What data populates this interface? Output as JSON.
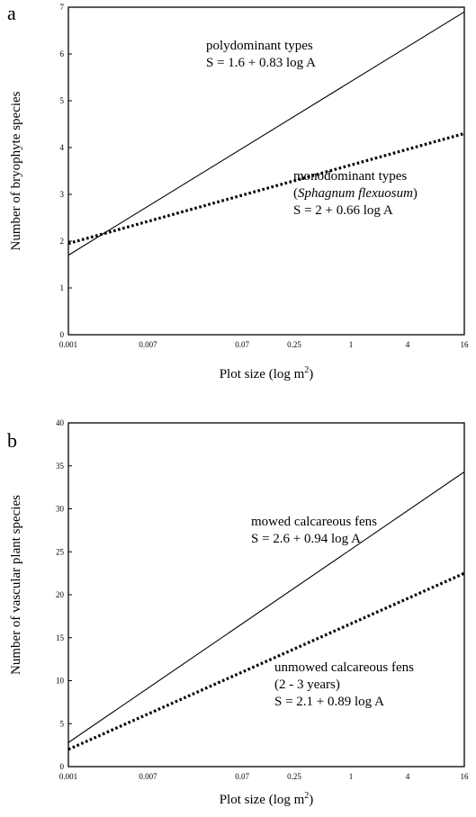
{
  "chart_data": [
    {
      "panel": "a",
      "type": "line",
      "title": "",
      "xlabel": "Plot size (log m",
      "xlabel_sup": "2",
      "xlabel_end": ")",
      "ylabel": "Number of bryophyte species",
      "x_scale": "log",
      "x_ticks": [
        {
          "value": 0.001,
          "label": "0.001"
        },
        {
          "value": 0.007,
          "label": "0.007"
        },
        {
          "value": 0.07,
          "label": "0.07"
        },
        {
          "value": 0.25,
          "label": "0.25"
        },
        {
          "value": 1,
          "label": "1"
        },
        {
          "value": 4,
          "label": "4"
        },
        {
          "value": 16,
          "label": "16"
        }
      ],
      "y_ticks": [
        {
          "value": 0,
          "label": "0"
        },
        {
          "value": 1,
          "label": "1"
        },
        {
          "value": 2,
          "label": "2"
        },
        {
          "value": 3,
          "label": "3"
        },
        {
          "value": 4,
          "label": "4"
        },
        {
          "value": 5,
          "label": "5"
        },
        {
          "value": 6,
          "label": "6"
        },
        {
          "value": 7,
          "label": "7"
        }
      ],
      "xlim": [
        0.001,
        16
      ],
      "ylim": [
        0,
        7
      ],
      "grid": false,
      "series": [
        {
          "style": "solid",
          "x": [
            0.001,
            16
          ],
          "y": [
            1.7,
            6.9
          ]
        },
        {
          "style": "dotted",
          "x": [
            0.001,
            16
          ],
          "y": [
            1.95,
            4.3
          ]
        }
      ],
      "annotations": [
        {
          "lines": [
            {
              "text": "polydominant types"
            },
            {
              "text": "S = 1.6 + 0.83 log A"
            }
          ]
        },
        {
          "lines": [
            {
              "text": "monodominant types"
            },
            {
              "prefix": "(",
              "italic": "Sphagnum flexuosum",
              "suffix": ")"
            },
            {
              "text": "S = 2 + 0.66 log A"
            }
          ]
        }
      ]
    },
    {
      "panel": "b",
      "type": "line",
      "title": "",
      "xlabel": "Plot size (log m",
      "xlabel_sup": "2",
      "xlabel_end": ")",
      "ylabel": "Number of vascular plant species",
      "x_scale": "log",
      "x_ticks": [
        {
          "value": 0.001,
          "label": "0.001"
        },
        {
          "value": 0.007,
          "label": "0.007"
        },
        {
          "value": 0.07,
          "label": "0.07"
        },
        {
          "value": 0.25,
          "label": "0.25"
        },
        {
          "value": 1,
          "label": "1"
        },
        {
          "value": 4,
          "label": "4"
        },
        {
          "value": 16,
          "label": "16"
        }
      ],
      "y_ticks": [
        {
          "value": 0,
          "label": "0"
        },
        {
          "value": 5,
          "label": "5"
        },
        {
          "value": 10,
          "label": "10"
        },
        {
          "value": 15,
          "label": "15"
        },
        {
          "value": 20,
          "label": "20"
        },
        {
          "value": 25,
          "label": "25"
        },
        {
          "value": 30,
          "label": "30"
        },
        {
          "value": 35,
          "label": "35"
        },
        {
          "value": 40,
          "label": "40"
        }
      ],
      "xlim": [
        0.001,
        16
      ],
      "ylim": [
        0,
        40
      ],
      "grid": false,
      "series": [
        {
          "style": "solid",
          "x": [
            0.001,
            16
          ],
          "y": [
            2.8,
            34.3
          ]
        },
        {
          "style": "dotted",
          "x": [
            0.001,
            16
          ],
          "y": [
            2.0,
            22.5
          ]
        }
      ],
      "annotations": [
        {
          "lines": [
            {
              "text": "mowed calcareous fens"
            },
            {
              "text": "S = 2.6 + 0.94 log A"
            }
          ]
        },
        {
          "lines": [
            {
              "text": "unmowed calcareous fens"
            },
            {
              "text": "(2 - 3 years)"
            },
            {
              "text": "S = 2.1 + 0.89 log A"
            }
          ]
        }
      ]
    }
  ]
}
